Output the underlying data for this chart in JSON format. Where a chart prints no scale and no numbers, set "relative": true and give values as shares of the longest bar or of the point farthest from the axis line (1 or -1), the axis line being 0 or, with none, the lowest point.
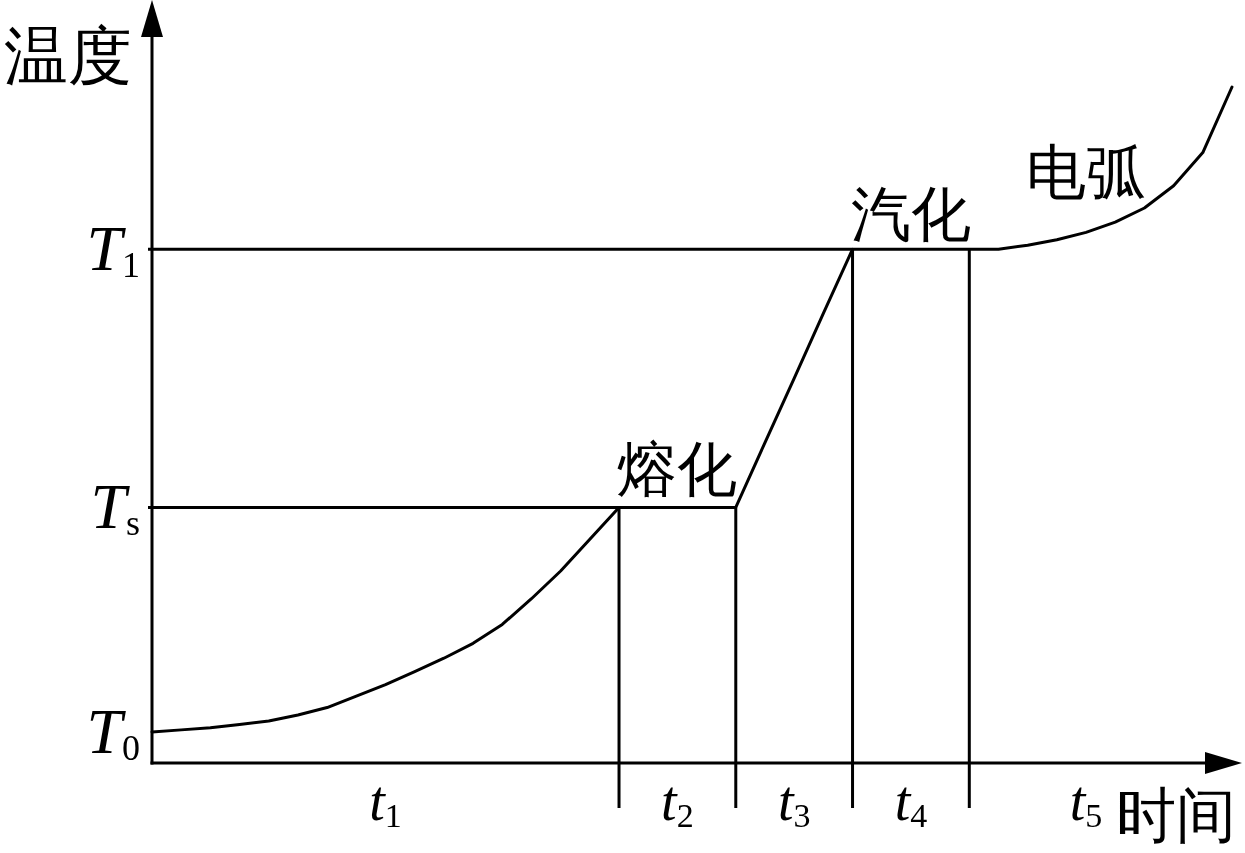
{
  "chart_data": {
    "type": "line",
    "relative": true,
    "grid": "x",
    "ylabel": "温度",
    "xlabel": "时间",
    "categories": [
      null,
      null,
      null,
      null,
      null,
      null,
      null,
      null,
      "t$_{1}$",
      null,
      null,
      null,
      null,
      null,
      null,
      null,
      null,
      null,
      "t$_{2}$",
      null,
      null,
      null,
      "t$_{3}$",
      null,
      null,
      null,
      "t$_{4}$",
      null,
      null,
      null,
      null,
      null,
      "t$_{5}$",
      null,
      null,
      null,
      null,
      null
    ],
    "series": [
      {
        "color": "#000000",
        "values": [
          0.046,
          0.049,
          0.052,
          0.057,
          0.062,
          0.071,
          0.082,
          0.099,
          0.116,
          0.135,
          0.155,
          0.177,
          0.205,
          0.243,
          0.284,
          0.331,
          0.378,
          0.378,
          0.378,
          0.378,
          0.378,
          0.474,
          0.569,
          0.665,
          0.76,
          0.76,
          0.76,
          0.76,
          0.76,
          0.76,
          0.766,
          0.774,
          0.785,
          0.8,
          0.821,
          0.854,
          0.903,
          1
        ]
      }
    ],
    "ref_lines": [
      {
        "axis": "y",
        "value": 0.378,
        "label": "T$_{s}$"
      },
      {
        "axis": "y",
        "value": 0.76,
        "label": "T$_{1}$"
      }
    ],
    "annotations": [
      "T$_{0}$",
      {
        "text": "熔化",
        "x": "t$_{2}$",
        "y": 0.378
      },
      {
        "text": "汽化",
        "x": "t$_{4}$",
        "y": 0.76
      },
      {
        "text": "电弧",
        "x": "t$_{5}$",
        "y": 0.785
      }
    ]
  }
}
